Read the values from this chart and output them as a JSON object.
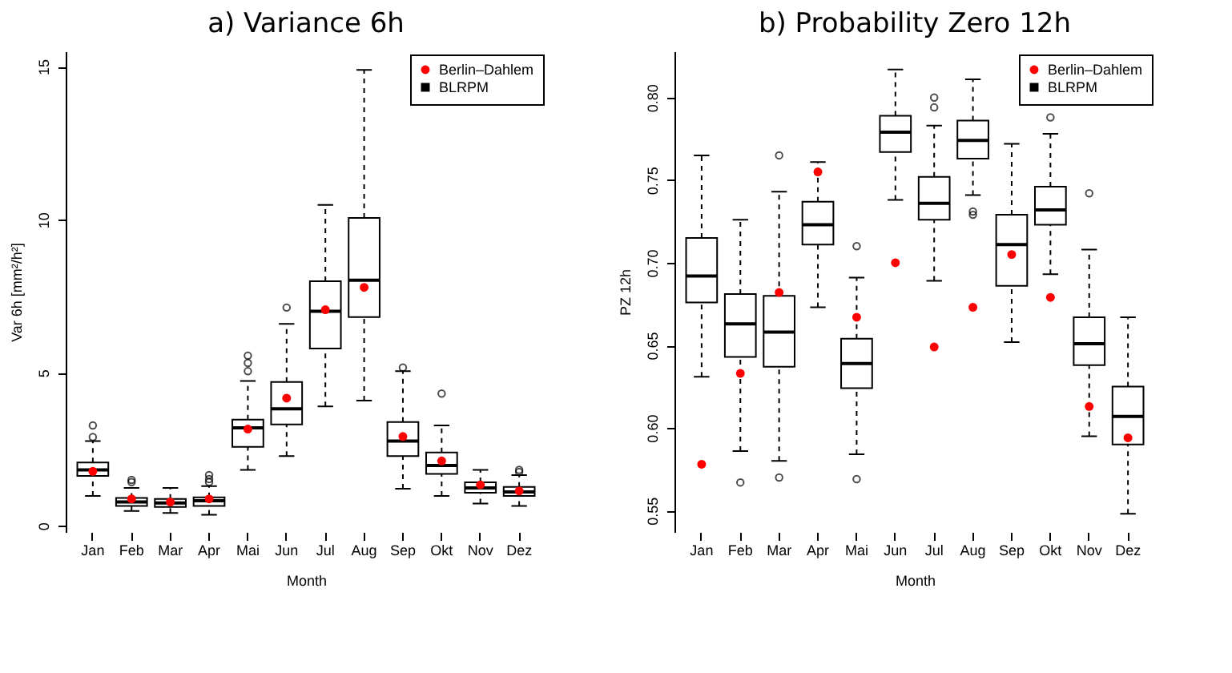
{
  "chart_data": [
    {
      "type": "box",
      "title": "a) Variance 6h",
      "xlabel": "Month",
      "ylabel": "Var 6h [mm²/h²]",
      "categories": [
        "Jan",
        "Feb",
        "Mar",
        "Apr",
        "Mai",
        "Jun",
        "Jul",
        "Aug",
        "Sep",
        "Okt",
        "Nov",
        "Dez"
      ],
      "ylim": [
        -0.2,
        15.5
      ],
      "yticks": [
        0,
        5,
        10,
        15
      ],
      "legend": "top right",
      "series": [
        {
          "name": "Berlin–Dahlem",
          "type": "scatter",
          "color": "#ff0000",
          "marker": "circle",
          "x": [
            "Jan",
            "Feb",
            "Mar",
            "Apr",
            "Mai",
            "Jun",
            "Jul",
            "Aug",
            "Sep",
            "Okt",
            "Nov",
            "Dez"
          ],
          "values": [
            1.78,
            0.88,
            0.78,
            0.88,
            3.16,
            4.17,
            7.06,
            7.79,
            2.92,
            2.12,
            1.34,
            1.14
          ]
        },
        {
          "name": "BLRPM",
          "type": "box",
          "color": "#000000",
          "boxes": [
            {
              "low": 0.98,
              "q1": 1.63,
              "median": 1.83,
              "q3": 2.07,
              "high": 2.77,
              "outliers": [
                2.9,
                3.28
              ]
            },
            {
              "low": 0.49,
              "q1": 0.65,
              "median": 0.78,
              "q3": 0.91,
              "high": 1.24,
              "outliers": [
                1.43,
                1.5
              ]
            },
            {
              "low": 0.42,
              "q1": 0.62,
              "median": 0.75,
              "q3": 0.88,
              "high": 1.24
            },
            {
              "low": 0.36,
              "q1": 0.65,
              "median": 0.82,
              "q3": 0.93,
              "high": 1.3,
              "outliers": [
                1.43,
                1.53,
                1.66
              ]
            },
            {
              "low": 1.83,
              "q1": 2.58,
              "median": 3.2,
              "q3": 3.47,
              "high": 4.73,
              "outliers": [
                5.05,
                5.32,
                5.56
              ]
            },
            {
              "low": 2.28,
              "q1": 3.31,
              "median": 3.82,
              "q3": 4.7,
              "high": 6.6,
              "outliers": [
                7.13
              ]
            },
            {
              "low": 3.9,
              "q1": 5.79,
              "median": 7.01,
              "q3": 7.99,
              "high": 10.48
            },
            {
              "low": 4.09,
              "q1": 6.82,
              "median": 8.02,
              "q3": 10.06,
              "high": 14.89
            },
            {
              "low": 1.21,
              "q1": 2.28,
              "median": 2.77,
              "q3": 3.39,
              "high": 5.05,
              "outliers": [
                5.17
              ]
            },
            {
              "low": 0.98,
              "q1": 1.7,
              "median": 1.97,
              "q3": 2.4,
              "high": 3.28,
              "outliers": [
                4.32
              ]
            },
            {
              "low": 0.73,
              "q1": 1.08,
              "median": 1.24,
              "q3": 1.42,
              "high": 1.83
            },
            {
              "low": 0.65,
              "q1": 0.98,
              "median": 1.11,
              "q3": 1.27,
              "high": 1.66,
              "outliers": [
                1.76,
                1.83
              ]
            }
          ]
        }
      ]
    },
    {
      "type": "box",
      "title": "b) Probability Zero 12h",
      "xlabel": "Month",
      "ylabel": "PZ 12h",
      "categories": [
        "Jan",
        "Feb",
        "Mar",
        "Apr",
        "Mai",
        "Jun",
        "Jul",
        "Aug",
        "Sep",
        "Okt",
        "Nov",
        "Dez"
      ],
      "ylim": [
        0.537,
        0.828
      ],
      "yticks": [
        0.55,
        {
          "value": 0.6,
          "label": "0.60"
        },
        0.65,
        {
          "value": 0.7,
          "label": "0.70"
        },
        0.75,
        {
          "value": 0.8,
          "label": "0.80"
        }
      ],
      "legend": "top right",
      "series": [
        {
          "name": "Berlin–Dahlem",
          "type": "scatter",
          "color": "#ff0000",
          "marker": "circle",
          "x": [
            "Jan",
            "Feb",
            "Mar",
            "Apr",
            "Mai",
            "Jun",
            "Jul",
            "Aug",
            "Sep",
            "Okt",
            "Nov",
            "Dez"
          ],
          "values": [
            0.578,
            0.633,
            0.682,
            0.755,
            0.667,
            0.7,
            0.649,
            0.673,
            0.705,
            0.679,
            0.613,
            0.594
          ]
        },
        {
          "name": "BLRPM",
          "type": "box",
          "color": "#000000",
          "boxes": [
            {
              "low": 0.631,
              "q1": 0.676,
              "median": 0.692,
              "q3": 0.715,
              "high": 0.765
            },
            {
              "low": 0.586,
              "q1": 0.643,
              "median": 0.663,
              "q3": 0.681,
              "high": 0.726,
              "outliers": [
                0.567
              ]
            },
            {
              "low": 0.58,
              "q1": 0.637,
              "median": 0.658,
              "q3": 0.68,
              "high": 0.743,
              "outliers": [
                0.765,
                0.57
              ]
            },
            {
              "low": 0.673,
              "q1": 0.711,
              "median": 0.723,
              "q3": 0.737,
              "high": 0.761
            },
            {
              "low": 0.584,
              "q1": 0.624,
              "median": 0.639,
              "q3": 0.654,
              "high": 0.691,
              "outliers": [
                0.71,
                0.569
              ]
            },
            {
              "low": 0.738,
              "q1": 0.767,
              "median": 0.779,
              "q3": 0.789,
              "high": 0.817
            },
            {
              "low": 0.689,
              "q1": 0.726,
              "median": 0.736,
              "q3": 0.752,
              "high": 0.783,
              "outliers": [
                0.8,
                0.794
              ]
            },
            {
              "low": 0.741,
              "q1": 0.763,
              "median": 0.774,
              "q3": 0.786,
              "high": 0.811,
              "outliers": [
                0.731,
                0.729
              ]
            },
            {
              "low": 0.652,
              "q1": 0.686,
              "median": 0.711,
              "q3": 0.729,
              "high": 0.772
            },
            {
              "low": 0.693,
              "q1": 0.723,
              "median": 0.732,
              "q3": 0.746,
              "high": 0.778,
              "outliers": [
                0.788
              ]
            },
            {
              "low": 0.595,
              "q1": 0.638,
              "median": 0.651,
              "q3": 0.667,
              "high": 0.708,
              "outliers": [
                0.742
              ]
            },
            {
              "low": 0.548,
              "q1": 0.59,
              "median": 0.607,
              "q3": 0.625,
              "high": 0.667
            }
          ]
        }
      ]
    }
  ]
}
